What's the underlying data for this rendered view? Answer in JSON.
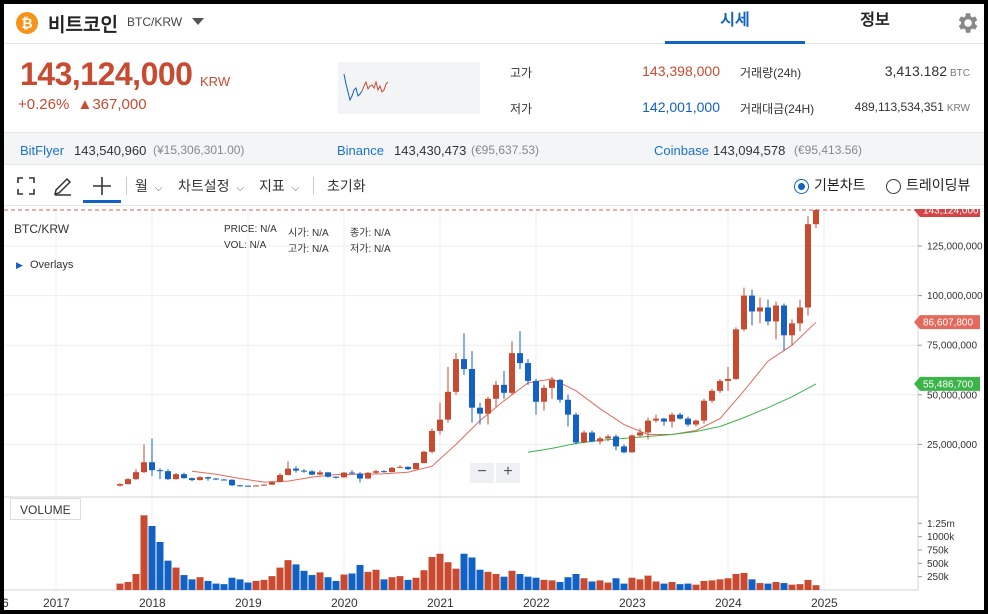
{
  "header": {
    "coin_symbol": "₿",
    "coin_name": "비트코인",
    "pair": "BTC/KRW",
    "tabs": [
      {
        "label": "시세",
        "active": true
      },
      {
        "label": "정보",
        "active": false
      }
    ],
    "icons": {
      "dropdown": "chevron-down-icon",
      "settings": "gear-icon"
    }
  },
  "quote": {
    "price": "143,124,000",
    "unit": "KRW",
    "change_pct": "+0.26%",
    "change_abs": "▲367,000",
    "color_up": "#c84a31",
    "color_down": "#1261c4"
  },
  "stats": {
    "high_label": "고가",
    "high": "143,398,000",
    "low_label": "저가",
    "low": "142,001,000",
    "vol_label": "거래량(24h)",
    "vol": "3,413.182",
    "vol_unit": "BTC",
    "amount_label": "거래대금(24H)",
    "amount": "489,113,534,351",
    "amount_unit": "KRW"
  },
  "exchanges": [
    {
      "name": "BitFlyer",
      "value": "143,540,960",
      "sub": "(¥15,306,301.00)"
    },
    {
      "name": "Binance",
      "value": "143,430,473",
      "sub": "(€95,637.53)"
    },
    {
      "name": "Coinbase",
      "value": "143,094,578",
      "sub": "(€95,413.56)"
    }
  ],
  "toolbar": {
    "interval": "월",
    "chart_settings": "차트설정",
    "indicators": "지표",
    "reset": "초기화",
    "view_basic": "기본차트",
    "view_tradingview": "트레이딩뷰",
    "icons": [
      "fullscreen-icon",
      "pen-icon",
      "crosshair-icon"
    ]
  },
  "chart": {
    "pair_label": "BTC/KRW",
    "overlays_label": "Overlays",
    "ohlc_row1": [
      {
        "k": "PRICE:",
        "v": "N/A"
      },
      {
        "k": "시가:",
        "v": "N/A"
      },
      {
        "k": "종가:",
        "v": "N/A"
      }
    ],
    "ohlc_row2": [
      {
        "k": "VOL:",
        "v": "N/A"
      },
      {
        "k": "고가:",
        "v": "N/A"
      },
      {
        "k": "저가:",
        "v": "N/A"
      }
    ],
    "volume_label": "VOLUME",
    "zoom_out": "−",
    "zoom_in": "+",
    "y_ticks": [
      "125,000,000",
      "100,000,000",
      "75,000,000",
      "50,000,000",
      "25,000,000"
    ],
    "vol_ticks": [
      "1.25m",
      "1000k",
      "750k",
      "500k",
      "250k"
    ],
    "x_ticks": [
      "6",
      "2017",
      "2018",
      "2019",
      "2020",
      "2021",
      "2022",
      "2023",
      "2024",
      "2025"
    ],
    "badges": [
      {
        "label": "143,124,000",
        "color": "#d64545"
      },
      {
        "label": "86,607,800",
        "color": "#e36a5d"
      },
      {
        "label": "55,486,700",
        "color": "#3bb54a"
      }
    ]
  },
  "chart_data": {
    "type": "candlestick",
    "title": "BTC/KRW",
    "ylim": [
      0,
      150000000
    ],
    "vol_max": 1500000,
    "x_start": "2016-06",
    "months_per_year": 12,
    "candles": [
      [
        2017,
        9,
        4200000,
        5000000,
        5400000,
        3800000,
        120000
      ],
      [
        2017,
        10,
        5000000,
        7500000,
        8000000,
        4700000,
        150000
      ],
      [
        2017,
        11,
        7500000,
        11000000,
        12500000,
        7000000,
        300000
      ],
      [
        2017,
        12,
        11000000,
        16000000,
        25000000,
        10500000,
        1400000
      ],
      [
        2018,
        1,
        16000000,
        12000000,
        28000000,
        9000000,
        1200000
      ],
      [
        2018,
        2,
        12000000,
        11500000,
        13000000,
        7500000,
        900000
      ],
      [
        2018,
        3,
        11500000,
        7500000,
        12500000,
        7000000,
        550000
      ],
      [
        2018,
        4,
        7500000,
        10000000,
        10500000,
        7200000,
        420000
      ],
      [
        2018,
        5,
        10000000,
        8000000,
        10800000,
        7700000,
        280000
      ],
      [
        2018,
        6,
        8000000,
        7000000,
        8300000,
        6500000,
        200000
      ],
      [
        2018,
        7,
        7000000,
        8500000,
        9000000,
        6800000,
        240000
      ],
      [
        2018,
        8,
        8500000,
        7800000,
        8700000,
        6700000,
        170000
      ],
      [
        2018,
        9,
        7800000,
        7300000,
        8000000,
        7000000,
        120000
      ],
      [
        2018,
        10,
        7300000,
        7200000,
        7700000,
        7000000,
        110000
      ],
      [
        2018,
        11,
        7200000,
        4400000,
        7300000,
        4000000,
        230000
      ],
      [
        2018,
        12,
        4400000,
        4200000,
        4600000,
        3700000,
        200000
      ],
      [
        2019,
        1,
        4200000,
        3900000,
        4300000,
        3700000,
        140000
      ],
      [
        2019,
        2,
        3900000,
        4300000,
        4500000,
        3800000,
        170000
      ],
      [
        2019,
        3,
        4300000,
        4700000,
        4900000,
        4200000,
        190000
      ],
      [
        2019,
        4,
        4700000,
        6000000,
        6600000,
        4600000,
        260000
      ],
      [
        2019,
        5,
        6000000,
        9600000,
        10500000,
        5900000,
        420000
      ],
      [
        2019,
        6,
        9600000,
        12800000,
        16500000,
        9300000,
        560000
      ],
      [
        2019,
        7,
        12800000,
        11800000,
        14000000,
        10800000,
        480000
      ],
      [
        2019,
        8,
        11800000,
        11400000,
        12500000,
        10700000,
        360000
      ],
      [
        2019,
        9,
        11400000,
        9800000,
        12000000,
        9500000,
        280000
      ],
      [
        2019,
        10,
        9800000,
        10900000,
        12000000,
        9300000,
        330000
      ],
      [
        2019,
        11,
        10900000,
        8700000,
        11000000,
        8200000,
        240000
      ],
      [
        2019,
        12,
        8700000,
        8400000,
        9000000,
        7800000,
        170000
      ],
      [
        2020,
        1,
        8400000,
        10800000,
        11000000,
        8100000,
        290000
      ],
      [
        2020,
        2,
        10800000,
        10300000,
        12000000,
        10000000,
        310000
      ],
      [
        2020,
        3,
        10300000,
        7800000,
        11000000,
        5800000,
        470000
      ],
      [
        2020,
        4,
        7800000,
        10700000,
        11000000,
        7500000,
        340000
      ],
      [
        2020,
        5,
        10700000,
        11500000,
        12200000,
        10200000,
        380000
      ],
      [
        2020,
        6,
        11500000,
        11100000,
        12000000,
        10800000,
        200000
      ],
      [
        2020,
        7,
        11100000,
        13200000,
        13600000,
        10900000,
        240000
      ],
      [
        2020,
        8,
        13200000,
        13700000,
        14500000,
        13000000,
        260000
      ],
      [
        2020,
        9,
        13700000,
        12500000,
        13900000,
        12000000,
        190000
      ],
      [
        2020,
        10,
        12500000,
        15600000,
        15800000,
        12400000,
        230000
      ],
      [
        2020,
        11,
        15600000,
        21300000,
        21800000,
        15400000,
        370000
      ],
      [
        2020,
        12,
        21300000,
        31800000,
        33000000,
        20500000,
        620000
      ],
      [
        2021,
        1,
        31800000,
        37500000,
        46000000,
        30000000,
        680000
      ],
      [
        2021,
        2,
        37500000,
        51500000,
        64000000,
        36000000,
        520000
      ],
      [
        2021,
        3,
        51500000,
        68000000,
        71000000,
        50000000,
        400000
      ],
      [
        2021,
        4,
        68000000,
        63000000,
        81000000,
        60000000,
        680000
      ],
      [
        2021,
        5,
        63000000,
        43500000,
        72000000,
        36000000,
        610000
      ],
      [
        2021,
        6,
        43500000,
        40500000,
        46000000,
        35000000,
        380000
      ],
      [
        2021,
        7,
        40500000,
        48000000,
        49000000,
        35000000,
        340000
      ],
      [
        2021,
        8,
        48000000,
        55000000,
        57000000,
        44000000,
        300000
      ],
      [
        2021,
        9,
        55000000,
        51000000,
        62000000,
        48000000,
        250000
      ],
      [
        2021,
        10,
        51000000,
        71000000,
        77000000,
        50000000,
        360000
      ],
      [
        2021,
        11,
        71000000,
        66000000,
        82000000,
        63000000,
        300000
      ],
      [
        2021,
        12,
        66000000,
        57000000,
        68000000,
        55000000,
        250000
      ],
      [
        2022,
        1,
        57000000,
        46500000,
        58000000,
        40000000,
        230000
      ],
      [
        2022,
        2,
        46500000,
        53500000,
        55000000,
        42000000,
        190000
      ],
      [
        2022,
        3,
        53500000,
        57500000,
        59000000,
        48000000,
        180000
      ],
      [
        2022,
        4,
        57500000,
        47500000,
        58000000,
        46000000,
        150000
      ],
      [
        2022,
        5,
        47500000,
        40000000,
        50000000,
        34000000,
        240000
      ],
      [
        2022,
        6,
        40000000,
        26000000,
        41000000,
        25000000,
        300000
      ],
      [
        2022,
        7,
        26000000,
        31000000,
        32000000,
        25500000,
        220000
      ],
      [
        2022,
        8,
        31000000,
        26500000,
        32000000,
        26000000,
        160000
      ],
      [
        2022,
        9,
        26500000,
        28000000,
        29000000,
        25000000,
        180000
      ],
      [
        2022,
        10,
        28000000,
        29000000,
        30000000,
        26500000,
        140000
      ],
      [
        2022,
        11,
        29000000,
        24000000,
        30000000,
        22000000,
        220000
      ],
      [
        2022,
        12,
        24000000,
        21000000,
        25000000,
        20500000,
        120000
      ],
      [
        2023,
        1,
        21000000,
        29500000,
        30000000,
        20800000,
        230000
      ],
      [
        2023,
        2,
        29500000,
        31000000,
        33000000,
        28500000,
        200000
      ],
      [
        2023,
        3,
        31000000,
        37000000,
        38500000,
        27500000,
        270000
      ],
      [
        2023,
        4,
        37000000,
        38000000,
        40000000,
        36000000,
        160000
      ],
      [
        2023,
        5,
        38000000,
        36500000,
        38500000,
        34500000,
        120000
      ],
      [
        2023,
        6,
        36500000,
        40000000,
        41000000,
        33500000,
        150000
      ],
      [
        2023,
        7,
        40000000,
        38000000,
        41000000,
        37500000,
        110000
      ],
      [
        2023,
        8,
        38000000,
        35000000,
        39000000,
        34000000,
        120000
      ],
      [
        2023,
        9,
        35000000,
        37000000,
        37500000,
        34000000,
        100000
      ],
      [
        2023,
        10,
        37000000,
        47000000,
        48000000,
        35500000,
        170000
      ],
      [
        2023,
        11,
        47000000,
        52000000,
        53000000,
        46000000,
        180000
      ],
      [
        2023,
        12,
        52000000,
        57000000,
        58000000,
        51000000,
        200000
      ],
      [
        2024,
        1,
        57000000,
        58000000,
        64000000,
        52000000,
        220000
      ],
      [
        2024,
        2,
        58000000,
        83000000,
        84000000,
        57500000,
        300000
      ],
      [
        2024,
        3,
        83000000,
        100000000,
        104000000,
        82000000,
        320000
      ],
      [
        2024,
        4,
        100000000,
        92000000,
        103000000,
        85000000,
        200000
      ],
      [
        2024,
        5,
        92000000,
        94000000,
        99000000,
        86000000,
        130000
      ],
      [
        2024,
        6,
        94000000,
        87000000,
        98000000,
        85000000,
        120000
      ],
      [
        2024,
        7,
        87000000,
        95000000,
        97000000,
        78000000,
        150000
      ],
      [
        2024,
        8,
        95000000,
        80000000,
        96000000,
        72000000,
        130000
      ],
      [
        2024,
        9,
        80000000,
        86000000,
        88000000,
        75000000,
        100000
      ],
      [
        2024,
        10,
        86000000,
        94000000,
        98000000,
        82000000,
        110000
      ],
      [
        2024,
        11,
        94000000,
        136000000,
        140000000,
        90000000,
        190000
      ],
      [
        2024,
        12,
        136000000,
        143124000,
        145000000,
        134000000,
        90000
      ]
    ],
    "ma_short": [
      [
        2018,
        6,
        11500000
      ],
      [
        2018,
        9,
        10000000
      ],
      [
        2018,
        12,
        7800000
      ],
      [
        2019,
        3,
        6000000
      ],
      [
        2019,
        6,
        6500000
      ],
      [
        2019,
        9,
        8500000
      ],
      [
        2019,
        12,
        9800000
      ],
      [
        2020,
        3,
        10000000
      ],
      [
        2020,
        6,
        10200000
      ],
      [
        2020,
        9,
        11000000
      ],
      [
        2020,
        12,
        14000000
      ],
      [
        2021,
        3,
        25000000
      ],
      [
        2021,
        6,
        37000000
      ],
      [
        2021,
        9,
        47000000
      ],
      [
        2021,
        12,
        56000000
      ],
      [
        2022,
        3,
        58000000
      ],
      [
        2022,
        6,
        52000000
      ],
      [
        2022,
        9,
        43000000
      ],
      [
        2022,
        12,
        35000000
      ],
      [
        2023,
        3,
        30000000
      ],
      [
        2023,
        6,
        30000000
      ],
      [
        2023,
        9,
        32000000
      ],
      [
        2023,
        12,
        38000000
      ],
      [
        2024,
        3,
        52000000
      ],
      [
        2024,
        6,
        67000000
      ],
      [
        2024,
        9,
        75000000
      ],
      [
        2024,
        12,
        86607800
      ]
    ],
    "ma_long": [
      [
        2021,
        12,
        21000000
      ],
      [
        2022,
        3,
        23000000
      ],
      [
        2022,
        6,
        25500000
      ],
      [
        2022,
        9,
        27000000
      ],
      [
        2022,
        12,
        28000000
      ],
      [
        2023,
        3,
        29000000
      ],
      [
        2023,
        6,
        30000000
      ],
      [
        2023,
        9,
        31500000
      ],
      [
        2023,
        12,
        34000000
      ],
      [
        2024,
        3,
        38500000
      ],
      [
        2024,
        6,
        43500000
      ],
      [
        2024,
        9,
        49000000
      ],
      [
        2024,
        12,
        55486700
      ]
    ]
  }
}
